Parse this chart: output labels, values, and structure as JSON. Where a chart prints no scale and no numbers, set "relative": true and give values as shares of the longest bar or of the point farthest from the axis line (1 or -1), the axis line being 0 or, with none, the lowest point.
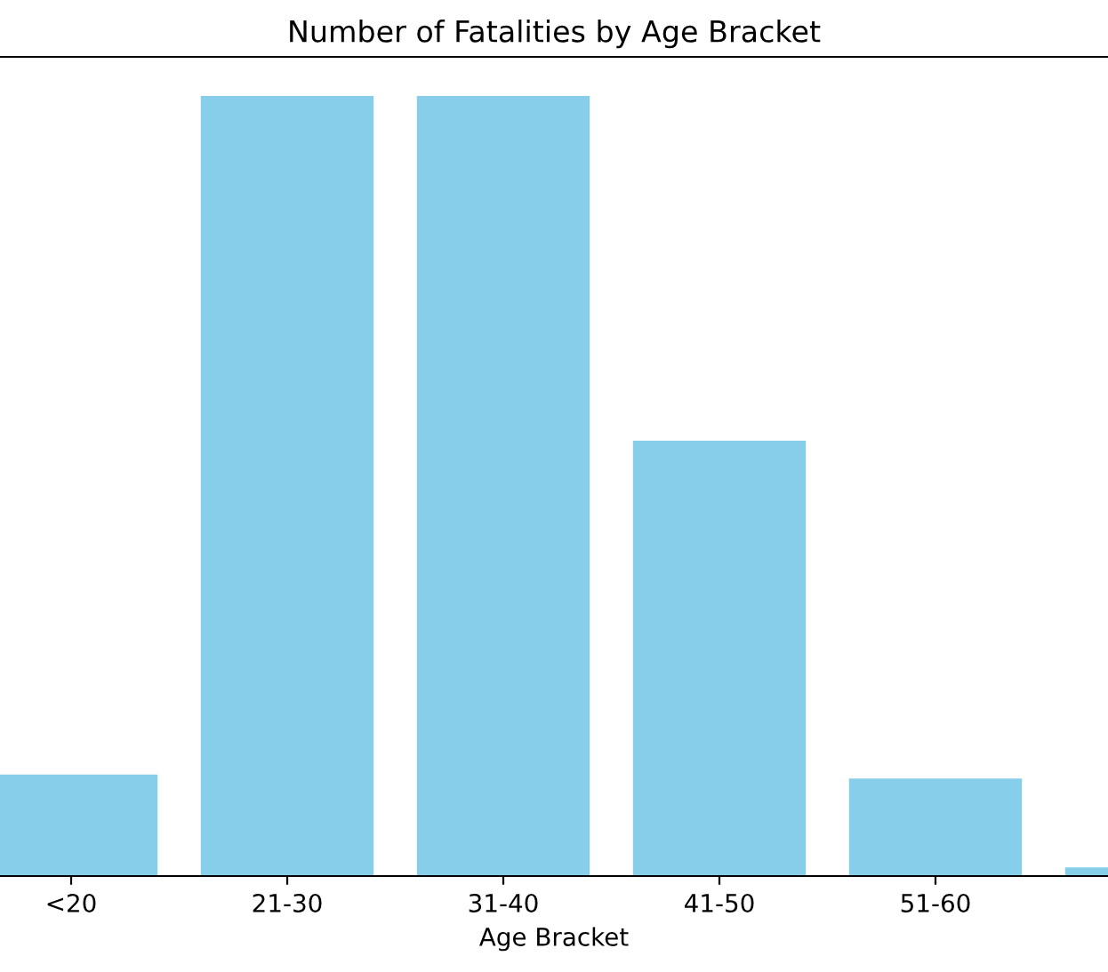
{
  "chart_data": {
    "type": "bar",
    "title": "Number of Fatalities by Age Bracket",
    "xlabel": "Age Bracket",
    "categories": [
      "<20",
      "21-30",
      "31-40",
      "41-50",
      "51-60",
      null
    ],
    "values": [
      0.13,
      1,
      1,
      0.558,
      0.125,
      0.011
    ],
    "color": "#87ceeb",
    "relative": true,
    "grid": false,
    "legend": false
  }
}
